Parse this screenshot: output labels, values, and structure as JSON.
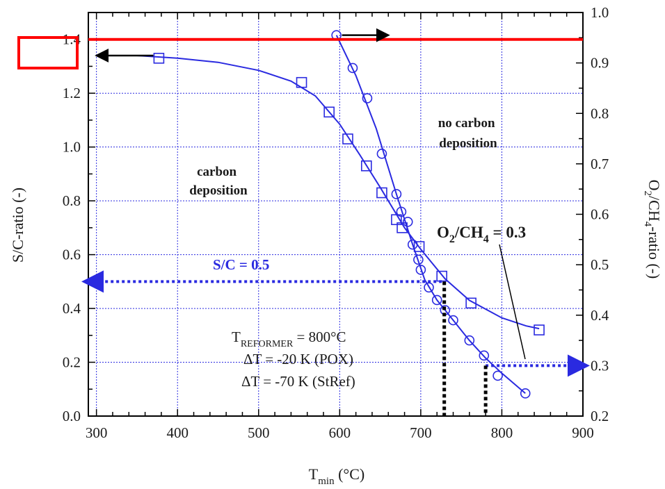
{
  "chart_data": {
    "type": "line",
    "xlabel": "T",
    "xlabel_sub": "min",
    "xlabel_unit": " (°C)",
    "ylabel_left": "S/C-ratio (-)",
    "ylabel_right_parts": [
      "O",
      "2",
      "/CH",
      "4",
      "-ratio (-)"
    ],
    "xlim": [
      290,
      900
    ],
    "ylim_left": [
      0.0,
      1.5
    ],
    "ylim_right": [
      0.2,
      1.0
    ],
    "x_ticks": [
      "300",
      "400",
      "500",
      "600",
      "700",
      "800",
      "900"
    ],
    "y_left_ticks": [
      "0.0",
      "0.2",
      "0.4",
      "0.6",
      "0.8",
      "1.0",
      "1.2",
      "1.4"
    ],
    "y_right_ticks": [
      "0.2",
      "0.3",
      "0.4",
      "0.5",
      "0.6",
      "0.7",
      "0.8",
      "0.9",
      "1.0"
    ],
    "grid": true,
    "series": [
      {
        "axis": "left",
        "marker": "square",
        "color": "#2a2ae0",
        "points": [
          [
            377,
            1.33
          ],
          [
            553,
            1.24
          ],
          [
            587,
            1.13
          ],
          [
            610,
            1.03
          ],
          [
            633,
            0.93
          ],
          [
            652,
            0.83
          ],
          [
            670,
            0.73
          ],
          [
            677,
            0.7
          ],
          [
            698,
            0.63
          ],
          [
            726,
            0.52
          ],
          [
            762,
            0.42
          ],
          [
            846,
            0.32
          ]
        ],
        "curve": [
          [
            300,
            1.34
          ],
          [
            350,
            1.34
          ],
          [
            400,
            1.33
          ],
          [
            450,
            1.315
          ],
          [
            500,
            1.285
          ],
          [
            540,
            1.245
          ],
          [
            570,
            1.19
          ],
          [
            600,
            1.085
          ],
          [
            625,
            0.97
          ],
          [
            650,
            0.85
          ],
          [
            680,
            0.7
          ],
          [
            700,
            0.62
          ],
          [
            730,
            0.51
          ],
          [
            760,
            0.43
          ],
          [
            800,
            0.365
          ],
          [
            830,
            0.335
          ],
          [
            846,
            0.325
          ]
        ]
      },
      {
        "axis": "right",
        "marker": "circle",
        "color": "#2a2ae0",
        "points": [
          [
            596,
            0.955
          ],
          [
            616,
            0.89
          ],
          [
            634,
            0.83
          ],
          [
            652,
            0.72
          ],
          [
            670,
            0.64
          ],
          [
            676,
            0.605
          ],
          [
            684,
            0.585
          ],
          [
            690,
            0.54
          ],
          [
            697,
            0.51
          ],
          [
            700,
            0.49
          ],
          [
            710,
            0.455
          ],
          [
            720,
            0.43
          ],
          [
            730,
            0.41
          ],
          [
            740,
            0.39
          ],
          [
            760,
            0.35
          ],
          [
            778,
            0.32
          ],
          [
            795,
            0.28
          ],
          [
            829,
            0.245
          ]
        ],
        "curve": [
          [
            596,
            0.955
          ],
          [
            620,
            0.875
          ],
          [
            645,
            0.77
          ],
          [
            670,
            0.64
          ],
          [
            690,
            0.54
          ],
          [
            705,
            0.47
          ],
          [
            720,
            0.43
          ],
          [
            740,
            0.39
          ],
          [
            760,
            0.35
          ],
          [
            780,
            0.315
          ],
          [
            800,
            0.285
          ],
          [
            829,
            0.245
          ]
        ]
      }
    ],
    "reference_lines": {
      "red_hline_left_y": 1.4,
      "sc_dashed_left_y": 0.5,
      "sc_dashed_x_end": 726,
      "o2_dashed_right_y": 0.3,
      "o2_dashed_x_start": 780,
      "drop_x_1": 729,
      "drop_x_2": 780
    },
    "annotations": {
      "carbon_deposition": [
        "carbon",
        "deposition"
      ],
      "no_carbon_deposition": [
        "no carbon",
        "deposition"
      ],
      "sc_label": "S/C = 0.5",
      "o2_label_parts": [
        "O",
        "2",
        "/CH",
        "4",
        " = 0.3"
      ],
      "treformer_main": "T",
      "treformer_sub": "REFORMER",
      "treformer_value": "  = 800°C",
      "dt_pox": "ΔT  = -20 K (POX)",
      "dt_stref": "ΔT  = -70 K (StRef)"
    },
    "colors": {
      "series": "#2a2ae0",
      "grid": "#2a2ae0",
      "highlight": "#ff0000",
      "axis": "#000000"
    }
  }
}
